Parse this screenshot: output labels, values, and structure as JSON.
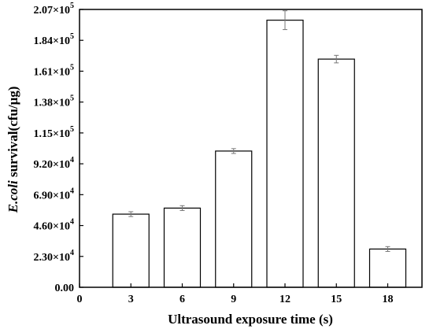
{
  "chart_data": {
    "type": "bar",
    "xlabel": "Ultrasound exposure time (s)",
    "ylabel": {
      "italic_part": "E.coli",
      "rest": " survival(cfu/μg)"
    },
    "x_ticks": [
      "0",
      "3",
      "6",
      "9",
      "12",
      "15",
      "18"
    ],
    "y_ticks": [
      {
        "value": 0,
        "mantissa": "0.00",
        "exponent": ""
      },
      {
        "value": 23000,
        "mantissa": "2.30×10",
        "exponent": "4"
      },
      {
        "value": 46000,
        "mantissa": "4.60×10",
        "exponent": "4"
      },
      {
        "value": 69000,
        "mantissa": "6.90×10",
        "exponent": "4"
      },
      {
        "value": 92000,
        "mantissa": "9.20×10",
        "exponent": "4"
      },
      {
        "value": 115000,
        "mantissa": "1.15×10",
        "exponent": "5"
      },
      {
        "value": 138000,
        "mantissa": "1.38×10",
        "exponent": "5"
      },
      {
        "value": 161000,
        "mantissa": "1.61×10",
        "exponent": "5"
      },
      {
        "value": 184000,
        "mantissa": "1.84×10",
        "exponent": "5"
      },
      {
        "value": 207000,
        "mantissa": "2.07×10",
        "exponent": "5"
      }
    ],
    "xlim": [
      0,
      20
    ],
    "ylim": [
      0,
      207000
    ],
    "bars": [
      {
        "x": 3,
        "value": 54500,
        "error": 1800
      },
      {
        "x": 6,
        "value": 59000,
        "error": 1800
      },
      {
        "x": 9,
        "value": 101500,
        "error": 1800
      },
      {
        "x": 12,
        "value": 199000,
        "error": 7000
      },
      {
        "x": 15,
        "value": 170000,
        "error": 2800
      },
      {
        "x": 18,
        "value": 28500,
        "error": 1800
      }
    ],
    "grid": false
  }
}
